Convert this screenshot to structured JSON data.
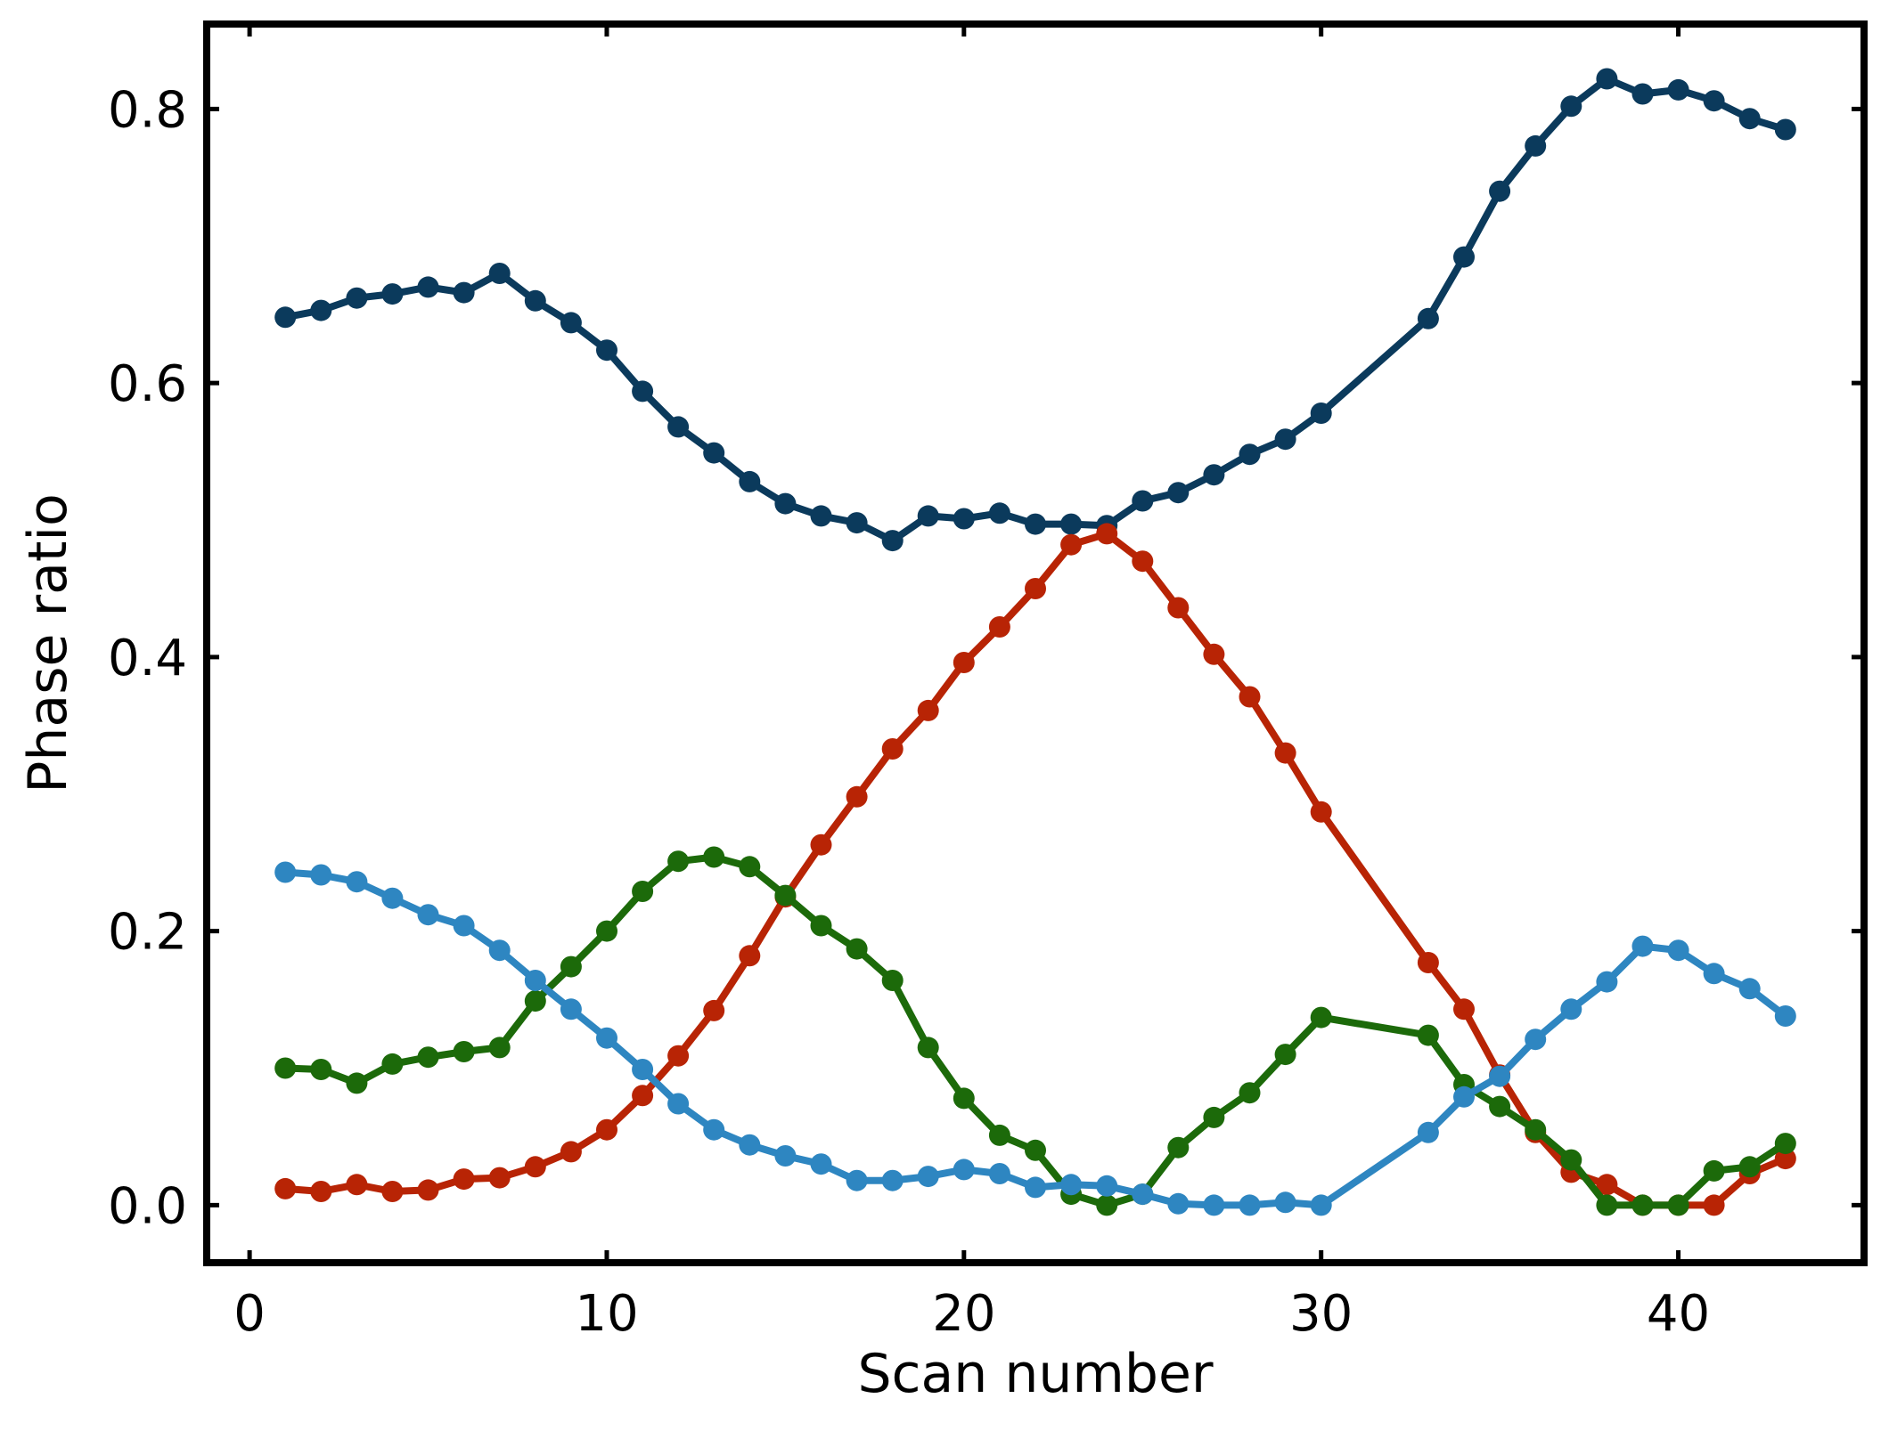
{
  "chart_data": {
    "type": "line",
    "title": "",
    "xlabel": "Scan number",
    "ylabel": "Phase ratio",
    "xlim": [
      -1.2,
      45.2
    ],
    "ylim": [
      -0.042,
      0.862
    ],
    "xticks": [
      0,
      10,
      20,
      30,
      40
    ],
    "yticks": [
      0.0,
      0.2,
      0.4,
      0.6,
      0.8
    ],
    "xtick_labels": [
      "0",
      "10",
      "20",
      "30",
      "40"
    ],
    "ytick_labels": [
      "0.0",
      "0.2",
      "0.4",
      "0.6",
      "0.8"
    ],
    "grid": false,
    "legend": "none",
    "series": [
      {
        "color": "#0b3a5c",
        "x": [
          1,
          2,
          3,
          4,
          5,
          6,
          7,
          8,
          9,
          10,
          11,
          12,
          13,
          14,
          15,
          16,
          17,
          18,
          19,
          20,
          21,
          22,
          23,
          24,
          25,
          26,
          27,
          28,
          29,
          30,
          33,
          34,
          35,
          36,
          37,
          38,
          39,
          40,
          41,
          42,
          43
        ],
        "y": [
          0.648,
          0.653,
          0.662,
          0.665,
          0.67,
          0.666,
          0.68,
          0.66,
          0.644,
          0.624,
          0.594,
          0.568,
          0.549,
          0.528,
          0.512,
          0.503,
          0.498,
          0.485,
          0.503,
          0.501,
          0.505,
          0.497,
          0.497,
          0.496,
          0.514,
          0.52,
          0.533,
          0.548,
          0.559,
          0.578,
          0.647,
          0.692,
          0.74,
          0.773,
          0.802,
          0.822,
          0.811,
          0.814,
          0.806,
          0.793,
          0.785
        ]
      },
      {
        "color": "#b82405",
        "x": [
          1,
          2,
          3,
          4,
          5,
          6,
          7,
          8,
          9,
          10,
          11,
          12,
          13,
          14,
          15,
          16,
          17,
          18,
          19,
          20,
          21,
          22,
          23,
          24,
          25,
          26,
          27,
          28,
          29,
          30,
          33,
          34,
          35,
          36,
          37,
          38,
          39,
          40,
          41,
          42,
          43
        ],
        "y": [
          0.012,
          0.01,
          0.015,
          0.01,
          0.011,
          0.019,
          0.02,
          0.028,
          0.039,
          0.055,
          0.08,
          0.109,
          0.142,
          0.182,
          0.225,
          0.263,
          0.298,
          0.333,
          0.361,
          0.396,
          0.422,
          0.45,
          0.482,
          0.49,
          0.47,
          0.436,
          0.402,
          0.371,
          0.33,
          0.287,
          0.177,
          0.143,
          0.095,
          0.053,
          0.024,
          0.015,
          0.0,
          0.0,
          0.0,
          0.023,
          0.034
        ]
      },
      {
        "color": "#1c6a0a",
        "x": [
          1,
          2,
          3,
          4,
          5,
          6,
          7,
          8,
          9,
          10,
          11,
          12,
          13,
          14,
          15,
          16,
          17,
          18,
          19,
          20,
          21,
          22,
          23,
          24,
          25,
          26,
          27,
          28,
          29,
          30,
          33,
          34,
          35,
          36,
          37,
          38,
          39,
          40,
          41,
          42,
          43
        ],
        "y": [
          0.1,
          0.099,
          0.089,
          0.103,
          0.108,
          0.112,
          0.115,
          0.149,
          0.174,
          0.2,
          0.229,
          0.251,
          0.254,
          0.247,
          0.226,
          0.204,
          0.187,
          0.164,
          0.115,
          0.078,
          0.051,
          0.04,
          0.008,
          0.0,
          0.008,
          0.042,
          0.064,
          0.082,
          0.11,
          0.137,
          0.124,
          0.088,
          0.072,
          0.055,
          0.033,
          0.0,
          0.0,
          0.0,
          0.025,
          0.028,
          0.045
        ]
      },
      {
        "color": "#2e86c1",
        "x": [
          1,
          2,
          3,
          4,
          5,
          6,
          7,
          8,
          9,
          10,
          11,
          12,
          13,
          14,
          15,
          16,
          17,
          18,
          19,
          20,
          21,
          22,
          23,
          24,
          25,
          26,
          27,
          28,
          29,
          30,
          33,
          34,
          35,
          36,
          37,
          38,
          39,
          40,
          41,
          42,
          43
        ],
        "y": [
          0.243,
          0.241,
          0.236,
          0.224,
          0.212,
          0.204,
          0.186,
          0.164,
          0.143,
          0.122,
          0.099,
          0.074,
          0.055,
          0.044,
          0.036,
          0.03,
          0.018,
          0.018,
          0.021,
          0.026,
          0.023,
          0.013,
          0.015,
          0.014,
          0.008,
          0.001,
          0.0,
          0.0,
          0.002,
          0.0,
          0.053,
          0.079,
          0.094,
          0.121,
          0.143,
          0.163,
          0.189,
          0.186,
          0.169,
          0.158,
          0.138
        ]
      }
    ]
  }
}
